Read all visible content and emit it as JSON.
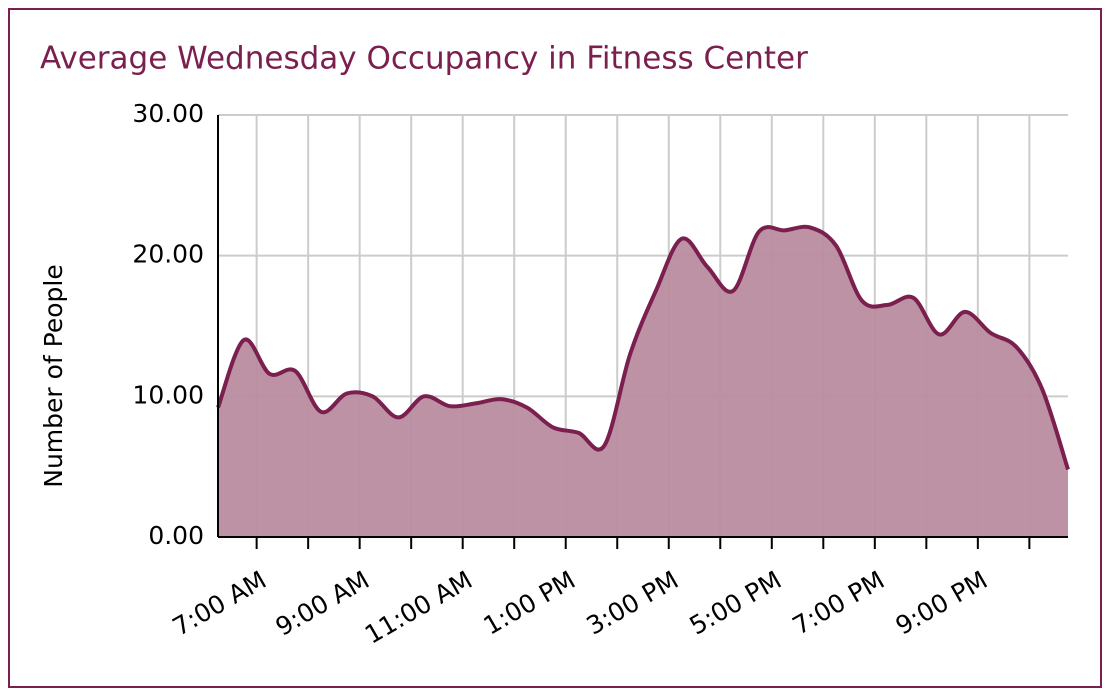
{
  "chart_data": {
    "type": "area",
    "title": "Average Wednesday Occupancy in Fitness Center",
    "y_label": "Number of People",
    "color": "#7a1f4e",
    "fill": "#b98ca0",
    "grid": true,
    "x": [
      6.25,
      6.75,
      7.25,
      7.75,
      8.25,
      8.75,
      9.25,
      9.75,
      10.25,
      10.75,
      11.25,
      11.75,
      12.25,
      12.75,
      13.25,
      13.75,
      14.25,
      14.75,
      15.25,
      15.75,
      16.25,
      16.75,
      17.25,
      17.75,
      18.25,
      18.75,
      19.25,
      19.75,
      20.25,
      20.75,
      21.25,
      21.75,
      22.25,
      22.75
    ],
    "values": [
      9.2,
      14,
      11.6,
      11.8,
      8.9,
      10.2,
      10,
      8.5,
      10,
      9.3,
      9.5,
      9.8,
      9.2,
      7.8,
      7.4,
      6.5,
      13,
      17.5,
      21.2,
      19.2,
      17.5,
      21.7,
      21.8,
      22,
      20.7,
      16.8,
      16.5,
      17,
      14.4,
      16,
      14.5,
      13.5,
      10.5,
      4.8
    ],
    "xlim": [
      6.25,
      22.75
    ],
    "xticks": [
      {
        "value": 7,
        "label": "7:00 AM"
      },
      {
        "value": 8,
        "label": null
      },
      {
        "value": 9,
        "label": "9:00 AM"
      },
      {
        "value": 10,
        "label": null
      },
      {
        "value": 11,
        "label": "11:00 AM"
      },
      {
        "value": 12,
        "label": null
      },
      {
        "value": 13,
        "label": "1:00 PM"
      },
      {
        "value": 14,
        "label": null
      },
      {
        "value": 15,
        "label": "3:00 PM"
      },
      {
        "value": 16,
        "label": null
      },
      {
        "value": 17,
        "label": "5:00 PM"
      },
      {
        "value": 18,
        "label": null
      },
      {
        "value": 19,
        "label": "7:00 PM"
      },
      {
        "value": 20,
        "label": null
      },
      {
        "value": 21,
        "label": "9:00 PM"
      },
      {
        "value": 22,
        "label": null
      }
    ],
    "ylim": [
      0,
      30
    ],
    "yticks": [
      {
        "value": 0,
        "label": "0.00"
      },
      {
        "value": 10,
        "label": "10.00"
      },
      {
        "value": 20,
        "label": "20.00"
      },
      {
        "value": 30,
        "label": "30.00"
      }
    ]
  }
}
